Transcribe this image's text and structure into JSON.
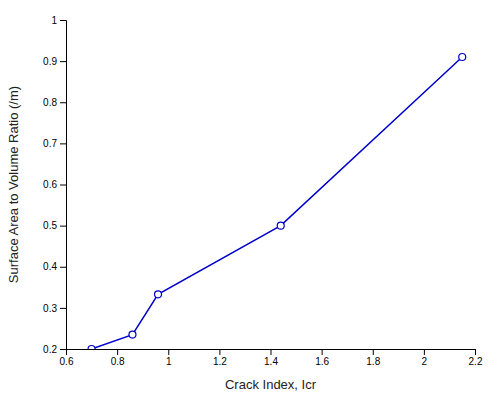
{
  "chart_data": {
    "type": "line",
    "x": [
      0.7,
      0.86,
      0.96,
      1.44,
      2.15
    ],
    "series": [
      {
        "values": [
          0.2,
          0.235,
          0.333,
          0.5,
          0.91
        ],
        "color": "#0000CC",
        "marker": "circle",
        "line_style": "solid"
      }
    ],
    "xlabel": "Crack Index, Icr",
    "ylabel": "Surface Area to Volume Ratio (/m)",
    "xlim": [
      0.6,
      2.2
    ],
    "ylim": [
      0.2,
      1.0
    ],
    "xticks": [
      0.6,
      0.8,
      1.0,
      1.2,
      1.4,
      1.6,
      1.8,
      2.0,
      2.2
    ],
    "yticks": [
      0.2,
      0.3,
      0.4,
      0.5,
      0.6,
      0.7,
      0.8,
      0.9,
      1.0
    ],
    "grid": false
  }
}
